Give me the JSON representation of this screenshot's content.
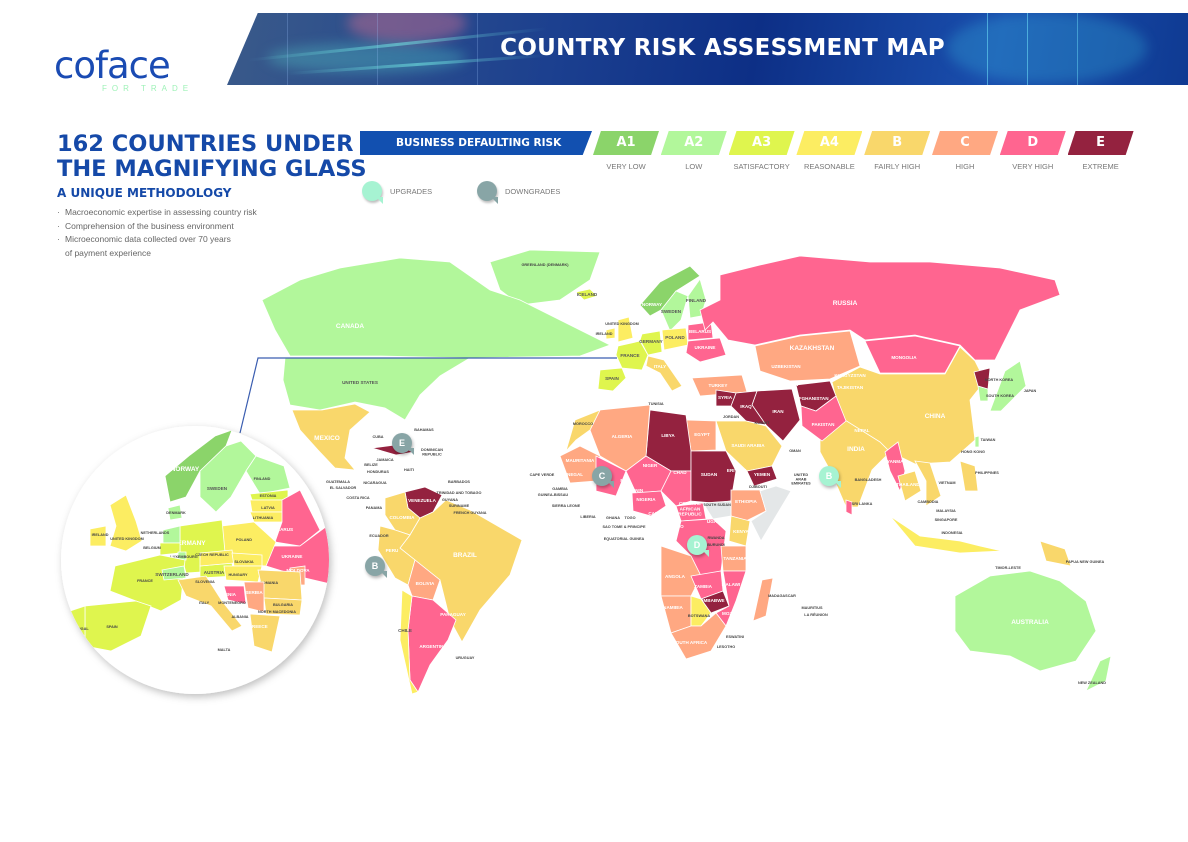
{
  "header": {
    "logo": "coface",
    "logo_tagline": "FOR TRADE",
    "title": "COUNTRY RISK ASSESSMENT MAP"
  },
  "intro": {
    "headline_line1": "162 COUNTRIES UNDER",
    "headline_line2": "THE MAGNIFYING GLASS",
    "subtitle": "A UNIQUE METHODOLOGY",
    "bullets": [
      "Macroeconomic expertise in assessing country risk",
      "Comprehension of the business environment",
      "Microeconomic data collected over 70 years of payment experience"
    ]
  },
  "legend": {
    "title": "BUSINESS DEFAULTING RISK",
    "ratings": [
      {
        "code": "A1",
        "label": "VERY LOW",
        "color": "#8bd46a"
      },
      {
        "code": "A2",
        "label": "LOW",
        "color": "#b2f79b"
      },
      {
        "code": "A3",
        "label": "SATISFACTORY",
        "color": "#dff54e"
      },
      {
        "code": "A4",
        "label": "REASONABLE",
        "color": "#fced62"
      },
      {
        "code": "B",
        "label": "FAIRLY HIGH",
        "color": "#f9d76b"
      },
      {
        "code": "C",
        "label": "HIGH",
        "color": "#ffa882"
      },
      {
        "code": "D",
        "label": "VERY HIGH",
        "color": "#ff6590"
      },
      {
        "code": "E",
        "label": "EXTREME",
        "color": "#94223f"
      }
    ],
    "upgrades_label": "UPGRADES",
    "upgrades_color": "#a6f3d2",
    "downgrades_label": "DOWNGRADES",
    "downgrades_color": "#88a5a6",
    "unrated_color": "#e4e7e8"
  },
  "markers": [
    {
      "type": "downgrade",
      "rating": "E"
    },
    {
      "type": "downgrade",
      "rating": "B"
    },
    {
      "type": "downgrade",
      "rating": "C"
    },
    {
      "type": "upgrade",
      "rating": "D"
    },
    {
      "type": "upgrade",
      "rating": "B"
    }
  ],
  "map": {
    "countries": [
      {
        "name": "GREENLAND (DENMARK)",
        "rating": "A2"
      },
      {
        "name": "CANADA",
        "rating": "A2"
      },
      {
        "name": "UNITED STATES",
        "rating": "A2"
      },
      {
        "name": "MEXICO",
        "rating": "B"
      },
      {
        "name": "CUBA",
        "rating": "E"
      },
      {
        "name": "VENEZUELA",
        "rating": "E"
      },
      {
        "name": "COLOMBIA",
        "rating": "B"
      },
      {
        "name": "BRAZIL",
        "rating": "B"
      },
      {
        "name": "PERU",
        "rating": "B"
      },
      {
        "name": "BOLIVIA",
        "rating": "C"
      },
      {
        "name": "ARGENTINA",
        "rating": "D"
      },
      {
        "name": "CHILE",
        "rating": "A4"
      },
      {
        "name": "ICELAND",
        "rating": "A3"
      },
      {
        "name": "NORWAY",
        "rating": "A1"
      },
      {
        "name": "SWEDEN",
        "rating": "A2"
      },
      {
        "name": "FINLAND",
        "rating": "A2"
      },
      {
        "name": "UNITED KINGDOM",
        "rating": "A4"
      },
      {
        "name": "IRELAND",
        "rating": "A4"
      },
      {
        "name": "FRANCE",
        "rating": "A3"
      },
      {
        "name": "SPAIN",
        "rating": "A3"
      },
      {
        "name": "GERMANY",
        "rating": "A3"
      },
      {
        "name": "POLAND",
        "rating": "A4"
      },
      {
        "name": "ITALY",
        "rating": "B"
      },
      {
        "name": "UKRAINE",
        "rating": "D"
      },
      {
        "name": "BELARUS",
        "rating": "D"
      },
      {
        "name": "TURKEY",
        "rating": "C"
      },
      {
        "name": "RUSSIA",
        "rating": "D"
      },
      {
        "name": "KAZAKHSTAN",
        "rating": "C"
      },
      {
        "name": "MONGOLIA",
        "rating": "D"
      },
      {
        "name": "CHINA",
        "rating": "B"
      },
      {
        "name": "INDIA",
        "rating": "B"
      },
      {
        "name": "IRAN",
        "rating": "E"
      },
      {
        "name": "IRAQ",
        "rating": "E"
      },
      {
        "name": "SYRIA",
        "rating": "E"
      },
      {
        "name": "AFGHANISTAN",
        "rating": "E"
      },
      {
        "name": "PAKISTAN",
        "rating": "D"
      },
      {
        "name": "SAUDI ARABIA",
        "rating": "B"
      },
      {
        "name": "YEMEN",
        "rating": "E"
      },
      {
        "name": "EGYPT",
        "rating": "C"
      },
      {
        "name": "LIBYA",
        "rating": "E"
      },
      {
        "name": "ALGERIA",
        "rating": "C"
      },
      {
        "name": "MOROCCO",
        "rating": "B"
      },
      {
        "name": "MAURITANIA",
        "rating": "C"
      },
      {
        "name": "MALI",
        "rating": "D"
      },
      {
        "name": "NIGER",
        "rating": "D"
      },
      {
        "name": "CHAD",
        "rating": "D"
      },
      {
        "name": "SUDAN",
        "rating": "E"
      },
      {
        "name": "ETHIOPIA",
        "rating": "C"
      },
      {
        "rating": null
      },
      {
        "name": "NIGERIA",
        "rating": "D"
      },
      {
        "name": "SOUTH SUDAN",
        "rating": null
      },
      {
        "name": "CENTRAL AFRICAN REPUBLIC",
        "rating": "D"
      },
      {
        "rating": "D"
      },
      {
        "name": "KENYA",
        "rating": "B"
      },
      {
        "name": "TANZANIA",
        "rating": "C"
      },
      {
        "name": "ANGOLA",
        "rating": "C"
      },
      {
        "name": "ZAMBIA",
        "rating": "D"
      },
      {
        "name": "ZIMBABWE",
        "rating": "E"
      },
      {
        "name": "MOZAMBIQUE",
        "rating": "D"
      },
      {
        "name": "NAMIBIA",
        "rating": "C"
      },
      {
        "name": "BOTSWANA",
        "rating": "A4"
      },
      {
        "name": "SOUTH AFRICA",
        "rating": "C"
      },
      {
        "name": "MADAGASCAR",
        "rating": "C"
      },
      {
        "name": "MYANMAR",
        "rating": "D"
      },
      {
        "name": "THAILAND",
        "rating": "B"
      },
      {
        "name": "VIETNAM",
        "rating": "B"
      },
      {
        "name": "INDONESIA",
        "rating": "A4"
      },
      {
        "name": "PHILIPPINES",
        "rating": "B"
      },
      {
        "name": "PAPUA NEW GUINEA",
        "rating": "B"
      },
      {
        "name": "JAPAN",
        "rating": "A2"
      },
      {
        "name": "SOUTH KOREA",
        "rating": "A2"
      },
      {
        "name": "NORTH KOREA",
        "rating": "E"
      },
      {
        "name": "AUSTRALIA",
        "rating": "A2"
      },
      {
        "name": "NEW ZEALAND",
        "rating": "A2"
      },
      {
        "name": "SRI LANKA",
        "rating": "D"
      },
      {
        "name": "TAIWAN",
        "rating": "A2"
      },
      {
        "name": "UZBEKISTAN"
      },
      {
        "name": "TURKMENISTAN"
      },
      {
        "name": "KYRGYZSTAN"
      },
      {
        "name": "TAJIKISTAN"
      },
      {
        "name": "NEPAL"
      },
      {
        "name": "BANGLADESH"
      },
      {
        "name": "CAMBODIA"
      },
      {
        "name": "MALAYSIA"
      },
      {
        "name": "SINGAPORE"
      },
      {
        "name": "HONG KONG"
      },
      {
        "name": "TIMOR-LESTE"
      },
      {
        "name": "OMAN"
      },
      {
        "name": "UNITED ARAB EMIRATES"
      },
      {
        "name": "KUWAIT"
      },
      {
        "name": "JORDAN"
      },
      {
        "name": "TUNISIA"
      },
      {
        "name": "ECUADOR"
      },
      {
        "name": "GUYANA"
      },
      {
        "name": "SURINAME"
      },
      {
        "name": "FRENCH GUYANA"
      },
      {
        "name": "URUGUAY"
      },
      {
        "name": "PARAGUAY"
      },
      {
        "name": "BAHAMAS"
      },
      {
        "name": "DOMINICAN REPUBLIC"
      },
      {
        "name": "JAMAICA"
      },
      {
        "name": "HAITI"
      },
      {
        "name": "BELIZE"
      },
      {
        "name": "HONDURAS"
      },
      {
        "name": "GUATEMALA"
      },
      {
        "name": "EL SALVADOR"
      },
      {
        "name": "NICARAGUA"
      },
      {
        "name": "COSTA RICA"
      },
      {
        "name": "PANAMA"
      },
      {
        "name": "BARBADOS"
      },
      {
        "name": "TRINIDAD AND TOBAGO"
      },
      {
        "name": "SENEGAL"
      },
      {
        "name": "GAMBIA"
      },
      {
        "name": "GUINEA-BISSAU"
      },
      {
        "name": "GUINEA"
      },
      {
        "name": "SIERRA LEONE"
      },
      {
        "name": "LIBERIA"
      },
      {
        "name": "IVORY COAST"
      },
      {
        "name": "GHANA"
      },
      {
        "name": "TOGO"
      },
      {
        "name": "BENIN"
      },
      {
        "name": "CAMEROON"
      },
      {
        "name": "GABON"
      },
      {
        "name": "CONGO"
      },
      {
        "name": "UGANDA"
      },
      {
        "name": "RWANDA"
      },
      {
        "name": "BURUNDI"
      },
      {
        "name": "MALAWI"
      },
      {
        "name": "ESWATINI"
      },
      {
        "name": "LESOTHO"
      },
      {
        "name": "MAURITIUS"
      },
      {
        "name": "LA RÉUNION"
      },
      {
        "name": "DJIBOUTI"
      },
      {
        "name": "ERITREA"
      },
      {
        "name": "CAPE VERDE"
      },
      {
        "name": "SAO TOME & PRINCIPE"
      },
      {
        "name": "EQUATORIAL GUINEA"
      }
    ]
  },
  "inset": {
    "countries": [
      {
        "name": "NORWAY",
        "rating": "A1"
      },
      {
        "name": "SWEDEN",
        "rating": "A2"
      },
      {
        "name": "FINLAND",
        "rating": "A2"
      },
      {
        "name": "ESTONIA",
        "rating": "A3"
      },
      {
        "name": "LATVIA",
        "rating": "A4"
      },
      {
        "name": "LITHUANIA",
        "rating": "A4"
      },
      {
        "name": "BELARUS",
        "rating": "D"
      },
      {
        "name": "UKRAINE",
        "rating": "D"
      },
      {
        "name": "MOLDOVA",
        "rating": "C"
      },
      {
        "name": "POLAND",
        "rating": "A4"
      },
      {
        "name": "GERMANY",
        "rating": "A3"
      },
      {
        "name": "NETHERLANDS",
        "rating": "A2"
      },
      {
        "name": "BELGIUM",
        "rating": "A3"
      },
      {
        "name": "LUXEMBOURG",
        "rating": "A2"
      },
      {
        "name": "FRANCE",
        "rating": "A3"
      },
      {
        "name": "SPAIN",
        "rating": "A3"
      },
      {
        "name": "PORTUGAL",
        "rating": "A3"
      },
      {
        "name": "UNITED KINGDOM",
        "rating": "A4"
      },
      {
        "name": "IRELAND",
        "rating": "A4"
      },
      {
        "name": "DENMARK",
        "rating": "A2"
      },
      {
        "name": "SWITZERLAND",
        "rating": "A2"
      },
      {
        "name": "AUSTRIA",
        "rating": "A3"
      },
      {
        "name": "CZECH REPUBLIC",
        "rating": "A4"
      },
      {
        "name": "SLOVAKIA",
        "rating": "A4"
      },
      {
        "name": "HUNGARY",
        "rating": "A4"
      },
      {
        "name": "ITALY",
        "rating": "B"
      },
      {
        "name": "ROMANIA",
        "rating": "B"
      },
      {
        "name": "BULGARIA",
        "rating": "B"
      },
      {
        "name": "SERBIA",
        "rating": "C"
      },
      {
        "name": "BOSNIA",
        "rating": "D"
      },
      {
        "name": "GREECE",
        "rating": "B"
      },
      {
        "name": "MALTA"
      },
      {
        "name": "MONTENEGRO"
      },
      {
        "name": "ALBANIA"
      },
      {
        "name": "NORTH MACEDONIA"
      },
      {
        "name": "SLOVENIA"
      }
    ]
  }
}
